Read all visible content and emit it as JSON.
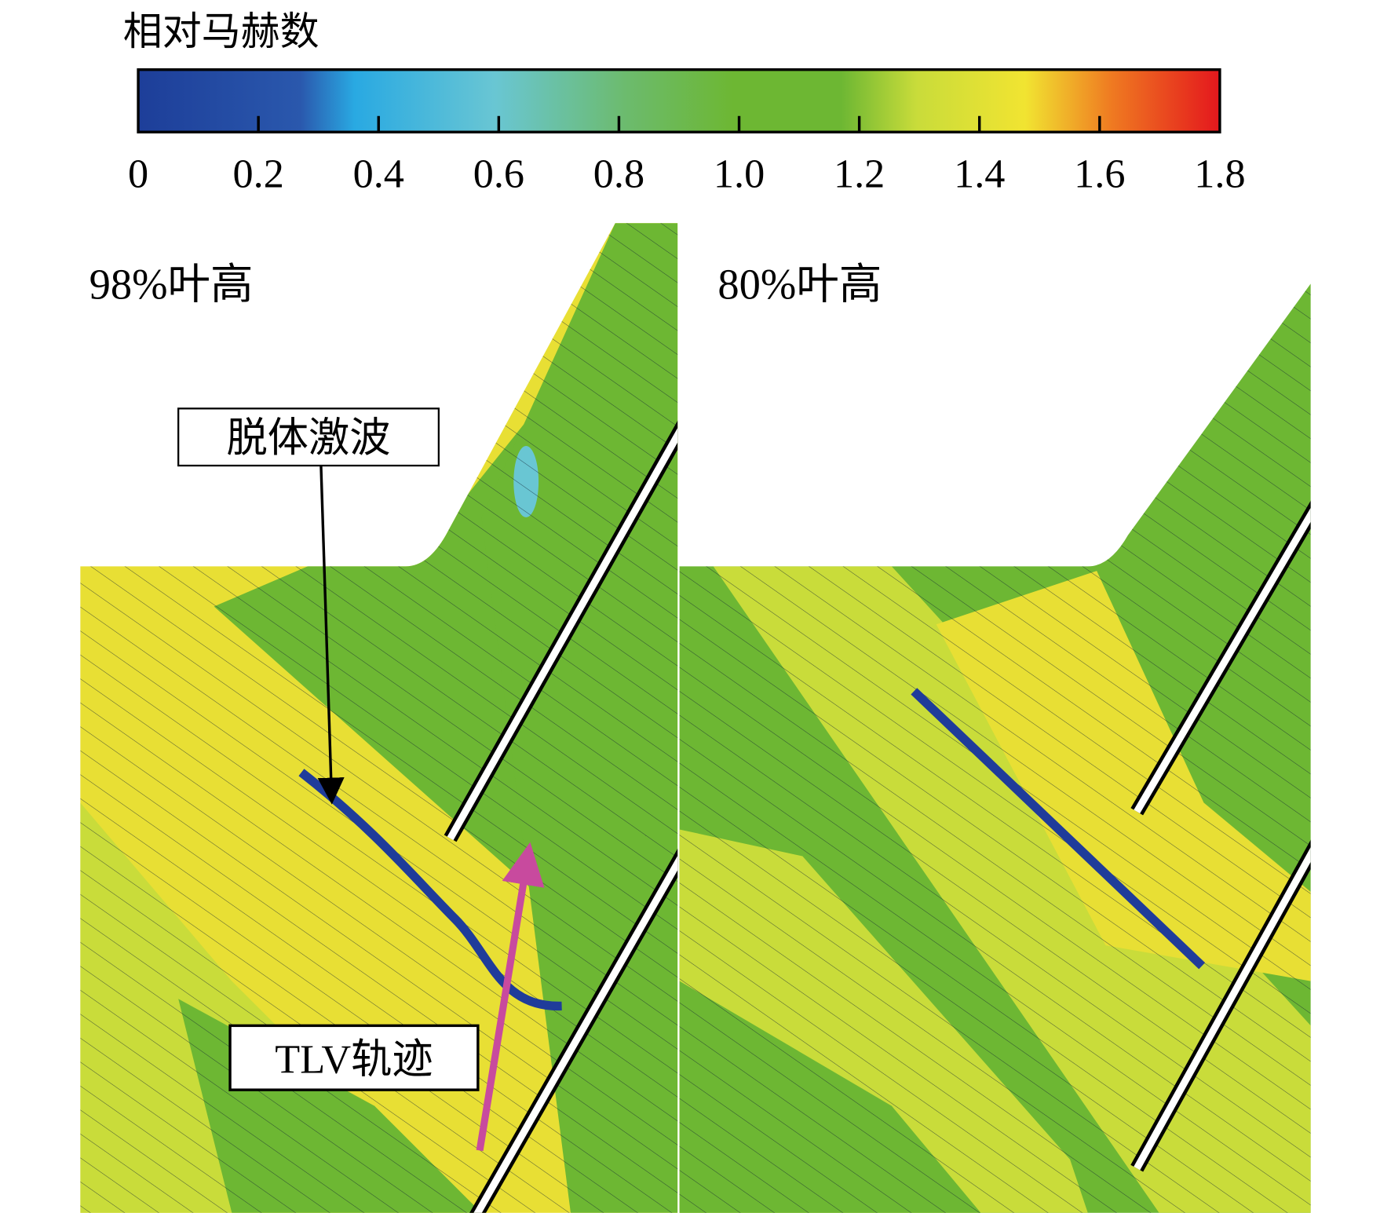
{
  "colorbar": {
    "title": "相对马赫数",
    "tick_labels": [
      "0",
      "0.2",
      "0.4",
      "0.6",
      "0.8",
      "1.0",
      "1.2",
      "1.4",
      "1.6",
      "1.8"
    ]
  },
  "panels": [
    {
      "label": "98%叶高",
      "annotations": [
        "脱体激波",
        "TLV轨迹"
      ]
    },
    {
      "label": "80%叶高"
    }
  ]
}
